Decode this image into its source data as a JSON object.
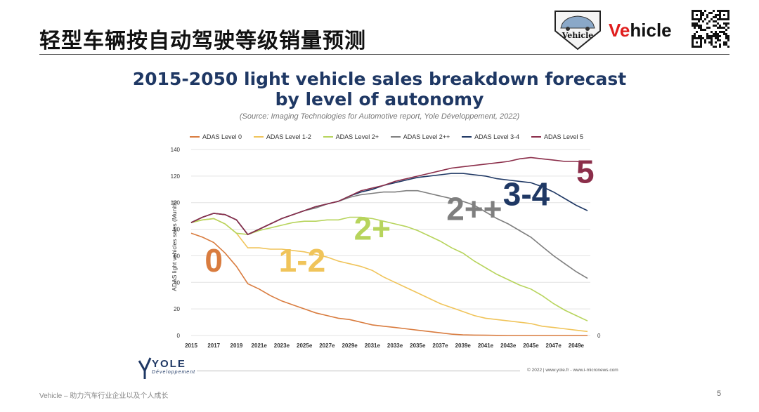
{
  "slide": {
    "title": "轻型车辆按自动驾驶等级销量预测",
    "brand_v": "Ve",
    "brand_rest": "hicle",
    "logo_text": "Vehicle",
    "footer": "Vehicle – 助力汽车行业企业以及个人成长",
    "page": "5"
  },
  "yole": {
    "name": "YOLE",
    "sub": "Développement",
    "copyright": "© 2022 | www.yole.fr - www.i-micronews.com"
  },
  "chart_data": {
    "type": "line",
    "title": "2015-2050 light vehicle sales breakdown forecast",
    "title_line2": "by level of autonomy",
    "subtitle": "(Source: Imaging Technologies for Automotive report, Yole Développement, 2022)",
    "ylabel": "ADAS light vehicles sales (Munits)",
    "xlabel": "",
    "ylim": [
      0,
      140
    ],
    "yticks": [
      0,
      20,
      40,
      60,
      80,
      100,
      120,
      140
    ],
    "right_axis_label": "0",
    "x": [
      2015,
      2016,
      2017,
      2018,
      2019,
      2020,
      2021,
      2022,
      2023,
      2024,
      2025,
      2026,
      2027,
      2028,
      2029,
      2030,
      2031,
      2032,
      2033,
      2034,
      2035,
      2036,
      2037,
      2038,
      2039,
      2040,
      2041,
      2042,
      2043,
      2044,
      2045,
      2046,
      2047,
      2048,
      2049,
      2050
    ],
    "xtick_labels": [
      "2015",
      "2017",
      "2019",
      "2021e",
      "2023e",
      "2025e",
      "2027e",
      "2029e",
      "2031e",
      "2033e",
      "2035e",
      "2037e",
      "2039e",
      "2041e",
      "2043e",
      "2045e",
      "2047e",
      "2049e"
    ],
    "legend_position": "top",
    "series": [
      {
        "name": "ADAS Level 0",
        "color": "#d97c3f",
        "big_label": "0",
        "values": [
          77,
          74,
          70,
          62,
          52,
          39,
          35,
          30,
          26,
          23,
          20,
          17,
          15,
          13,
          12,
          10,
          8,
          7,
          6,
          5,
          4,
          3,
          2,
          1,
          0.5,
          0.3,
          0.2,
          0.1,
          0,
          0,
          0,
          0,
          0,
          0,
          0,
          0
        ]
      },
      {
        "name": "ADAS Level 1-2",
        "color": "#f0c45a",
        "big_label": "1-2",
        "values": [
          85,
          87,
          88,
          84,
          77,
          66,
          66,
          65,
          65,
          64,
          63,
          61,
          59,
          56,
          54,
          52,
          49,
          44,
          40,
          36,
          32,
          28,
          24,
          21,
          18,
          15,
          13,
          12,
          11,
          10,
          9,
          7,
          6,
          5,
          4,
          3
        ]
      },
      {
        "name": "ADAS Level 2+",
        "color": "#b7d45c",
        "big_label": "2+",
        "values": [
          85,
          87,
          88,
          84,
          77,
          76,
          79,
          81,
          83,
          85,
          86,
          86,
          87,
          87,
          89,
          89,
          88,
          86,
          84,
          82,
          79,
          75,
          71,
          66,
          62,
          56,
          51,
          46,
          42,
          38,
          35,
          30,
          24,
          19,
          15,
          11
        ]
      },
      {
        "name": "ADAS Level 2++",
        "color": "#7f7f7f",
        "big_label": "2++",
        "values": [
          85,
          89,
          92,
          91,
          87,
          76,
          80,
          84,
          88,
          91,
          94,
          96,
          99,
          101,
          104,
          106,
          107,
          108,
          108,
          109,
          109,
          107,
          105,
          103,
          101,
          98,
          93,
          88,
          84,
          79,
          74,
          67,
          60,
          54,
          48,
          43
        ]
      },
      {
        "name": "ADAS Level 3-4",
        "color": "#1f3864",
        "big_label": "3-4",
        "values": [
          85,
          89,
          92,
          91,
          87,
          76,
          80,
          84,
          88,
          91,
          94,
          97,
          99,
          101,
          105,
          108,
          110,
          113,
          115,
          117,
          119,
          120,
          121,
          122,
          122,
          121,
          120,
          118,
          117,
          116,
          115,
          112,
          108,
          103,
          98,
          94
        ]
      },
      {
        "name": "ADAS Level 5",
        "color": "#8b2e4a",
        "big_label": "5",
        "values": [
          85,
          89,
          92,
          91,
          87,
          76,
          80,
          84,
          88,
          91,
          94,
          97,
          99,
          101,
          105,
          109,
          111,
          113,
          116,
          118,
          120,
          122,
          124,
          126,
          127,
          128,
          129,
          130,
          131,
          133,
          134,
          133,
          132,
          131,
          131,
          130
        ]
      }
    ]
  }
}
